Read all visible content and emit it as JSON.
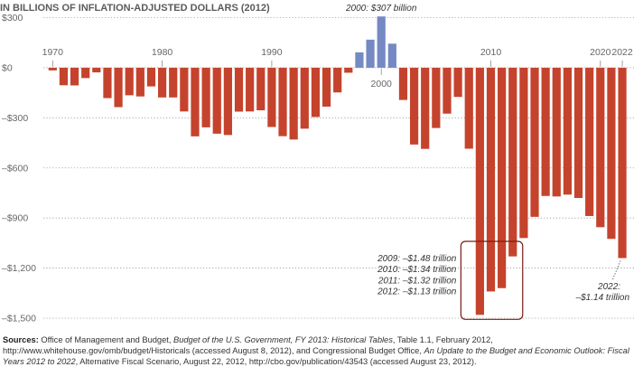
{
  "chart_data": {
    "type": "bar",
    "subtitle": "IN BILLIONS OF INFLATION-ADJUSTED DOLLARS (2012)",
    "x": [
      1970,
      1971,
      1972,
      1973,
      1974,
      1975,
      1976,
      1977,
      1978,
      1979,
      1980,
      1981,
      1982,
      1983,
      1984,
      1985,
      1986,
      1987,
      1988,
      1989,
      1990,
      1991,
      1992,
      1993,
      1994,
      1995,
      1996,
      1997,
      1998,
      1999,
      2000,
      2001,
      2002,
      2003,
      2004,
      2005,
      2006,
      2007,
      2008,
      2009,
      2010,
      2011,
      2012,
      2013,
      2014,
      2015,
      2016,
      2017,
      2018,
      2019,
      2020,
      2021,
      2022
    ],
    "values": [
      -16,
      -105,
      -106,
      -62,
      -28,
      -182,
      -236,
      -165,
      -172,
      -112,
      -178,
      -178,
      -262,
      -411,
      -357,
      -395,
      -403,
      -263,
      -262,
      -255,
      -355,
      -410,
      -430,
      -365,
      -295,
      -233,
      -148,
      -30,
      92,
      168,
      307,
      144,
      -193,
      -460,
      -486,
      -361,
      -275,
      -175,
      -485,
      -1480,
      -1340,
      -1320,
      -1130,
      -1020,
      -893,
      -768,
      -771,
      -760,
      -780,
      -888,
      -955,
      -1025,
      -1140
    ],
    "positive_color": "#7589c2",
    "negative_color": "#c5432c",
    "highlight_box_color": "#7a1c12",
    "ylim": [
      -1500,
      300
    ],
    "y_ticks": [
      300,
      0,
      -300,
      -600,
      -900,
      -1200,
      -1500
    ],
    "y_tick_labels": [
      "$300",
      "$0",
      "–$300",
      "–$600",
      "–$900",
      "–$1,200",
      "–$1,500"
    ],
    "x_ticks_above": [
      {
        "year": 1970,
        "label": "1970"
      },
      {
        "year": 1980,
        "label": "1980"
      },
      {
        "year": 1990,
        "label": "1990"
      },
      {
        "year": 2010,
        "label": "2010"
      },
      {
        "year": 2020,
        "label": "2020"
      },
      {
        "year": 2022,
        "label": "2022"
      }
    ],
    "x_ticks_below": [
      {
        "year": 2000,
        "label": "2000"
      }
    ],
    "grid": "horizontal dotted",
    "annotations": {
      "peak_2000": "2000: $307 billion",
      "box_lines": [
        "2009: –$1.48 trillion",
        "2010: –$1.34 trillion",
        "2011: –$1.32 trillion",
        "2012: –$1.13 trillion"
      ],
      "end_2022_line1": "2022:",
      "end_2022_line2": "–$1.14 trillion"
    }
  },
  "sources": {
    "label": "Sources:",
    "part1": "Office of Management and Budget, ",
    "title1": "Budget of the U.S. Government, FY 2013: Historical Tables",
    "part2": ", Table 1.1, February 2012, http://www.whitehouse.gov/omb/budget/Historicals (accessed August 8, 2012), and Congressional Budget Office, ",
    "title2": "An Update to the Budget and Economic Outlook: Fiscal Years 2012 to 2022",
    "part3": ", Alternative Fiscal Scenario, August 22, 2012, http://cbo.gov/publication/43543 (accessed August 23, 2012)."
  }
}
